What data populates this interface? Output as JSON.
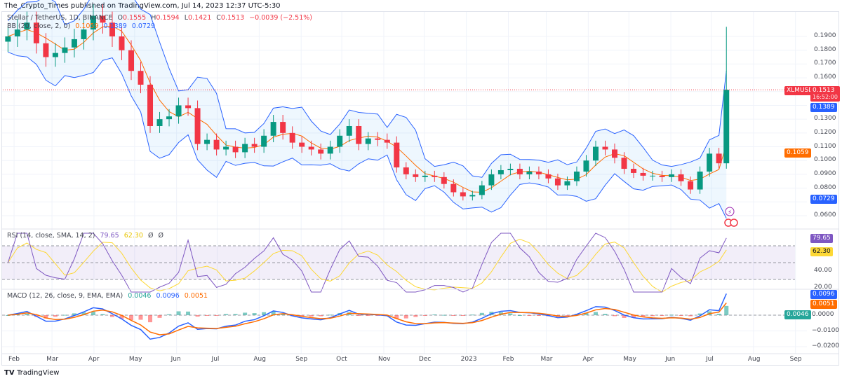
{
  "caption": "The_Crypto_Times published on TradingView.com, Jul 14, 2023 12:37 UTC-5:30",
  "legend": {
    "symbol": "Stellar / TetherUS, 1D, BINANCE",
    "o_label": "O",
    "o": "0.1555",
    "h_label": "H",
    "h": "0.1594",
    "l_label": "L",
    "l": "0.1421",
    "c_label": "C",
    "c": "0.1513",
    "change": "−0.0039 (−2.51%)",
    "bb": "BB (20, close, 2, 0)",
    "bb_basis": "0.1059",
    "bb_upper": "0.1389",
    "bb_lower": "0.0729",
    "rsi": "RSI (14, close, SMA, 14, 2)",
    "rsi_value": "79.65",
    "rsi_ma": "62.30",
    "rsi_extra1": "Ø",
    "rsi_extra2": "Ø",
    "macd": "MACD (12, 26, close, 9, EMA, EMA)",
    "macd_hist": "0.0046",
    "macd_line": "0.0096",
    "macd_signal": "0.0051"
  },
  "price_tags": {
    "symbol": "XLMUSDT",
    "last": "0.1513",
    "countdown": "16:52:00",
    "bb_upper": "0.1389",
    "bb_basis": "0.1059",
    "bb_lower": "0.0729",
    "rsi": "79.65",
    "rsi_ma": "62.30",
    "macd_line": "0.0096",
    "macd_signal": "0.0051",
    "macd_hist": "0.0046"
  },
  "price_axis": [
    "0.1900",
    "0.1800",
    "0.1700",
    "0.1600",
    "0.1300",
    "0.1200",
    "0.1100",
    "0.1000",
    "0.0900",
    "0.0800",
    "0.0600"
  ],
  "rsi_axis": [
    "40.00",
    "20.00"
  ],
  "macd_axis": [
    "0.0000",
    "−0.0100",
    "−0.0200"
  ],
  "time_axis": [
    "Feb",
    "Mar",
    "Apr",
    "May",
    "Jun",
    "Jul",
    "Aug",
    "Sep",
    "Oct",
    "Nov",
    "Dec",
    "2023",
    "Feb",
    "Mar",
    "Apr",
    "May",
    "Jun",
    "Jul",
    "Aug",
    "Sep"
  ],
  "logo": {
    "mark": "TV",
    "text": "TradingView"
  },
  "colors": {
    "up": "#089981",
    "down": "#f23645",
    "bb_basis": "#ff6d00",
    "bb_band": "#2962ff",
    "rsi": "#7e57c2",
    "rsi_ma": "#fdd835",
    "macd": "#2962ff",
    "signal": "#ff6d00"
  },
  "chart_data": {
    "type": "candlestick",
    "symbol": "XLMUSDT",
    "ylim": [
      0.055,
      0.2
    ],
    "grid": true,
    "dates": [
      "2022-01-24",
      "2022-01-31",
      "2022-02-07",
      "2022-02-14",
      "2022-02-21",
      "2022-02-28",
      "2022-03-07",
      "2022-03-14",
      "2022-03-21",
      "2022-03-28",
      "2022-04-04",
      "2022-04-11",
      "2022-04-18",
      "2022-04-25",
      "2022-05-02",
      "2022-05-09",
      "2022-05-16",
      "2022-05-23",
      "2022-05-30",
      "2022-06-06",
      "2022-06-13",
      "2022-06-20",
      "2022-06-27",
      "2022-07-04",
      "2022-07-11",
      "2022-07-18",
      "2022-07-25",
      "2022-08-01",
      "2022-08-08",
      "2022-08-15",
      "2022-08-22",
      "2022-08-29",
      "2022-09-05",
      "2022-09-12",
      "2022-09-19",
      "2022-09-26",
      "2022-10-03",
      "2022-10-10",
      "2022-10-17",
      "2022-10-24",
      "2022-10-31",
      "2022-11-07",
      "2022-11-14",
      "2022-11-21",
      "2022-11-28",
      "2022-12-05",
      "2022-12-12",
      "2022-12-19",
      "2022-12-26",
      "2023-01-02",
      "2023-01-09",
      "2023-01-16",
      "2023-01-23",
      "2023-01-30",
      "2023-02-06",
      "2023-02-13",
      "2023-02-20",
      "2023-02-27",
      "2023-03-06",
      "2023-03-13",
      "2023-03-20",
      "2023-03-27",
      "2023-04-03",
      "2023-04-10",
      "2023-04-17",
      "2023-04-24",
      "2023-05-01",
      "2023-05-08",
      "2023-05-15",
      "2023-05-22",
      "2023-05-29",
      "2023-06-05",
      "2023-06-12",
      "2023-06-19",
      "2023-06-26",
      "2023-07-03",
      "2023-07-10"
    ],
    "close": [
      0.19,
      0.195,
      0.2,
      0.185,
      0.175,
      0.178,
      0.182,
      0.188,
      0.195,
      0.205,
      0.2,
      0.19,
      0.18,
      0.165,
      0.155,
      0.125,
      0.13,
      0.132,
      0.14,
      0.138,
      0.112,
      0.115,
      0.108,
      0.11,
      0.106,
      0.112,
      0.11,
      0.118,
      0.128,
      0.12,
      0.113,
      0.11,
      0.108,
      0.105,
      0.11,
      0.118,
      0.125,
      0.112,
      0.116,
      0.115,
      0.113,
      0.095,
      0.09,
      0.088,
      0.089,
      0.088,
      0.083,
      0.077,
      0.074,
      0.075,
      0.082,
      0.09,
      0.093,
      0.094,
      0.09,
      0.092,
      0.09,
      0.087,
      0.082,
      0.085,
      0.092,
      0.1,
      0.11,
      0.108,
      0.102,
      0.094,
      0.091,
      0.089,
      0.089,
      0.088,
      0.09,
      0.085,
      0.079,
      0.092,
      0.105,
      0.098,
      0.1513
    ],
    "last_high": 0.197
  }
}
